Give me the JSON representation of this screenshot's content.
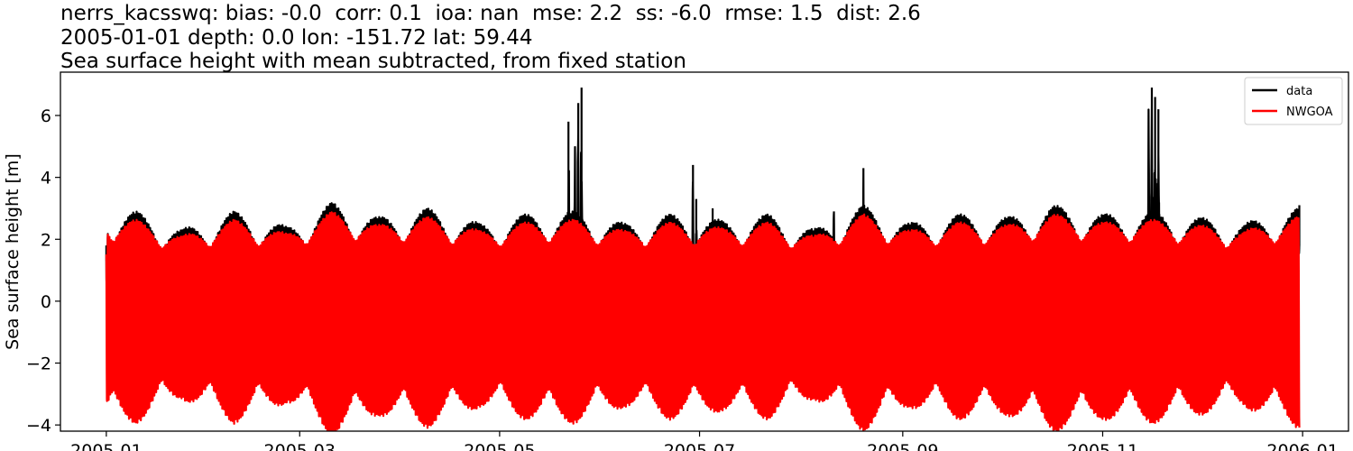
{
  "chart_data": {
    "type": "line",
    "title_lines": [
      "nerrs_kacsswq: bias: -0.0  corr: 0.1  ioa: nan  mse: 2.2  ss: -6.0  rmse: 1.5  dist: 2.6",
      "2005-01-01 depth: 0.0 lon: -151.72 lat: 59.44",
      "Sea surface height with mean subtracted, from fixed station"
    ],
    "xlabel": "",
    "ylabel": "Sea surface height [m]",
    "xlim": [
      "2004-12-18",
      "2006-01-15"
    ],
    "ylim": [
      -4.2,
      7.4
    ],
    "x_ticks": [
      "2005-01",
      "2005-03",
      "2005-05",
      "2005-07",
      "2005-09",
      "2005-11",
      "2006-01"
    ],
    "y_ticks": [
      -4,
      -2,
      0,
      2,
      4,
      6
    ],
    "grid": false,
    "legend_position": "top-right",
    "series": [
      {
        "name": "data",
        "color": "#000000",
        "x": [
          "2005-01-01",
          "2005-05-22",
          "2005-05-24",
          "2005-05-25",
          "2005-05-26",
          "2005-06-29",
          "2005-06-30",
          "2005-07-03",
          "2005-07-05",
          "2005-08-11",
          "2005-08-20",
          "2005-11-15",
          "2005-11-16",
          "2005-11-17",
          "2005-11-18",
          "2005-12-31"
        ],
        "y": [
          1.3,
          5.8,
          5.0,
          6.4,
          6.9,
          4.4,
          3.3,
          2.3,
          3.0,
          2.9,
          4.3,
          6.2,
          6.9,
          6.6,
          6.2,
          3.1
        ]
      },
      {
        "name": "NWGOA",
        "color": "#ff0000",
        "x": [
          "2005-01-10",
          "2005-01-24",
          "2005-02-09",
          "2005-02-25",
          "2005-03-11",
          "2005-03-25",
          "2005-04-09",
          "2005-04-25",
          "2005-05-09",
          "2005-05-24",
          "2005-06-08",
          "2005-06-22",
          "2005-07-08",
          "2005-07-22",
          "2005-08-05",
          "2005-08-20",
          "2005-09-03",
          "2005-09-18",
          "2005-10-03",
          "2005-10-17",
          "2005-11-01",
          "2005-11-16",
          "2005-11-30",
          "2005-12-14",
          "2005-12-30"
        ],
        "y": [
          3.0,
          2.4,
          3.0,
          2.5,
          3.3,
          2.8,
          3.1,
          2.6,
          2.9,
          3.0,
          2.6,
          2.9,
          2.7,
          2.9,
          2.4,
          3.2,
          2.6,
          2.9,
          2.8,
          3.2,
          2.9,
          3.0,
          2.8,
          2.6,
          3.1
        ]
      }
    ]
  }
}
